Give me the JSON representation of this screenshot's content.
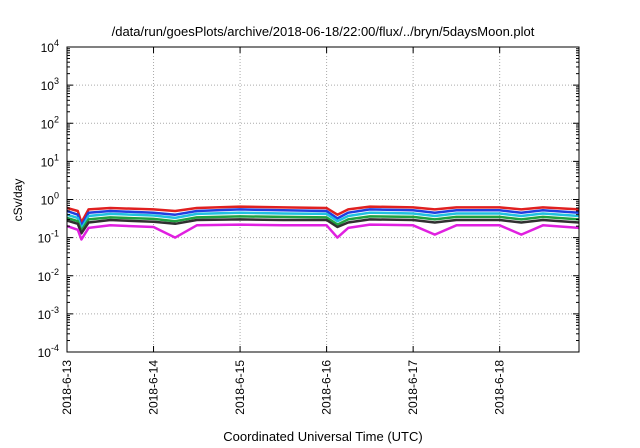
{
  "chart_data": {
    "type": "area",
    "title": "/data/run/goesPlots/archive/2018-06-18/22:00/flux/../bryn/5daysMoon.plot",
    "xlabel": "Coordinated Universal Time (UTC)",
    "ylabel": "cSv/day",
    "yscale": "log",
    "ylim": [
      0.0001,
      10000
    ],
    "xlim": [
      "2018-06-13 00:00",
      "2018-06-18 22:00"
    ],
    "grid": true,
    "x_ticks": [
      "2018-6-13",
      "2018-6-14",
      "2018-6-15",
      "2018-6-16",
      "2018-6-17",
      "2018-6-18"
    ],
    "y_ticks": [
      {
        "base": "10",
        "exp": "-4"
      },
      {
        "base": "10",
        "exp": "-3"
      },
      {
        "base": "10",
        "exp": "-2"
      },
      {
        "base": "10",
        "exp": "-1"
      },
      {
        "base": "10",
        "exp": "0"
      },
      {
        "base": "10",
        "exp": "1"
      },
      {
        "base": "10",
        "exp": "2"
      },
      {
        "base": "10",
        "exp": "3"
      },
      {
        "base": "10",
        "exp": "4"
      }
    ],
    "x": [
      "2018-06-13 00:00",
      "2018-06-13 03:00",
      "2018-06-13 04:00",
      "2018-06-13 06:00",
      "2018-06-13 12:00",
      "2018-06-14 00:00",
      "2018-06-14 06:00",
      "2018-06-14 12:00",
      "2018-06-15 00:00",
      "2018-06-15 12:00",
      "2018-06-16 00:00",
      "2018-06-16 03:00",
      "2018-06-16 06:00",
      "2018-06-16 12:00",
      "2018-06-17 00:00",
      "2018-06-17 06:00",
      "2018-06-17 12:00",
      "2018-06-18 00:00",
      "2018-06-18 06:00",
      "2018-06-18 12:00",
      "2018-06-18 22:00"
    ],
    "series": [
      {
        "color": "#e02020",
        "values": [
          0.6,
          0.5,
          0.25,
          0.55,
          0.6,
          0.55,
          0.5,
          0.6,
          0.65,
          0.62,
          0.6,
          0.4,
          0.55,
          0.65,
          0.62,
          0.55,
          0.62,
          0.62,
          0.55,
          0.62,
          0.55
        ]
      },
      {
        "color": "#1f3fe0",
        "values": [
          0.5,
          0.4,
          0.2,
          0.45,
          0.5,
          0.45,
          0.4,
          0.5,
          0.55,
          0.52,
          0.5,
          0.32,
          0.45,
          0.55,
          0.52,
          0.45,
          0.52,
          0.52,
          0.45,
          0.52,
          0.45
        ]
      },
      {
        "color": "#20c0e0",
        "values": [
          0.4,
          0.33,
          0.17,
          0.37,
          0.42,
          0.38,
          0.33,
          0.42,
          0.45,
          0.43,
          0.42,
          0.27,
          0.37,
          0.45,
          0.43,
          0.37,
          0.43,
          0.43,
          0.37,
          0.43,
          0.37
        ]
      },
      {
        "color": "#20a040",
        "values": [
          0.33,
          0.27,
          0.15,
          0.3,
          0.34,
          0.31,
          0.27,
          0.34,
          0.36,
          0.35,
          0.34,
          0.22,
          0.3,
          0.36,
          0.35,
          0.3,
          0.35,
          0.35,
          0.3,
          0.35,
          0.3
        ]
      },
      {
        "color": "#303030",
        "values": [
          0.28,
          0.23,
          0.13,
          0.25,
          0.29,
          0.26,
          0.23,
          0.29,
          0.3,
          0.29,
          0.29,
          0.19,
          0.25,
          0.3,
          0.29,
          0.25,
          0.29,
          0.29,
          0.25,
          0.29,
          0.25
        ]
      },
      {
        "color": "#e020e0",
        "values": [
          0.2,
          0.16,
          0.09,
          0.18,
          0.21,
          0.19,
          0.1,
          0.21,
          0.22,
          0.21,
          0.21,
          0.1,
          0.18,
          0.22,
          0.21,
          0.12,
          0.21,
          0.21,
          0.12,
          0.21,
          0.18
        ]
      }
    ]
  }
}
